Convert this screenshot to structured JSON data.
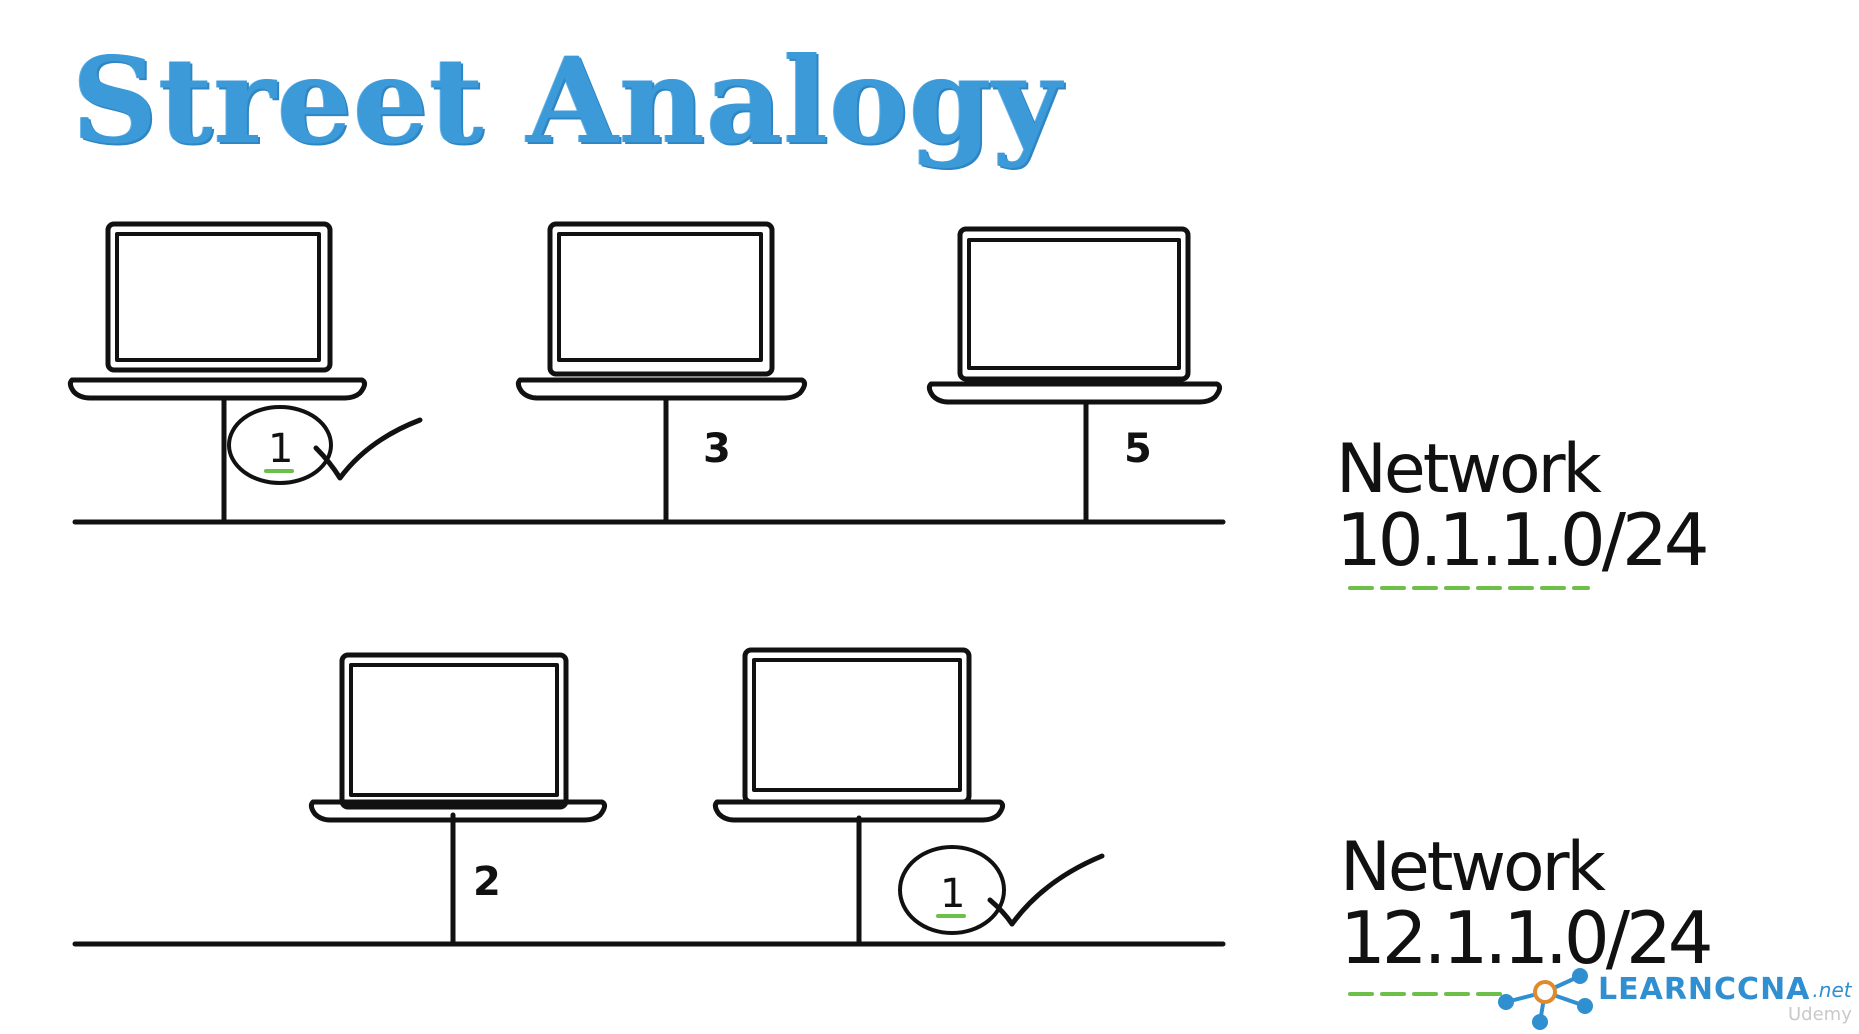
{
  "title": "Street Analogy",
  "networks": [
    {
      "label": "Network",
      "address": "10.1.1.0/24",
      "hosts": [
        {
          "number": "1",
          "circled": true
        },
        {
          "number": "3",
          "circled": false
        },
        {
          "number": "5",
          "circled": false
        }
      ]
    },
    {
      "label": "Network",
      "address": "12.1.1.0/24",
      "hosts": [
        {
          "number": "2",
          "circled": false
        },
        {
          "number": "1",
          "circled": true
        }
      ]
    }
  ],
  "brand": {
    "name": "LEARNCCNA",
    "suffix": ".net"
  },
  "watermark": "Udemy",
  "colors": {
    "title": "#3d9ad8",
    "underline": "#6cc04a",
    "brand": "#2f8fd0",
    "ink": "#111111"
  }
}
